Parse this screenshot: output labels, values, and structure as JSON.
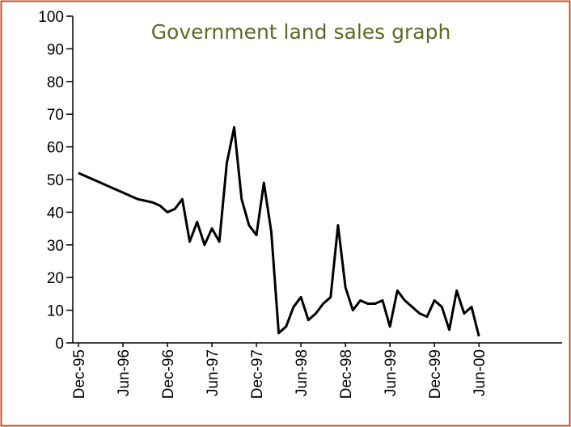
{
  "chart_data": {
    "type": "line",
    "title": "Government land sales graph",
    "categories": [
      "Dec-95",
      null,
      null,
      null,
      null,
      null,
      "Jun-96",
      null,
      null,
      null,
      null,
      null,
      "Dec-96",
      null,
      null,
      null,
      null,
      null,
      "Jun-97",
      null,
      null,
      null,
      null,
      null,
      "Dec-97",
      null,
      null,
      null,
      null,
      null,
      "Jun-98",
      null,
      null,
      null,
      null,
      null,
      "Dec-98",
      null,
      null,
      null,
      null,
      null,
      "Jun-99",
      null,
      null,
      null,
      null,
      null,
      "Dec-99",
      null,
      null,
      null,
      null,
      null,
      "Jun-00",
      null,
      null,
      null,
      null,
      null,
      null,
      null,
      null,
      null,
      null,
      null
    ],
    "values": [
      52,
      51,
      50,
      49,
      48,
      47,
      46,
      45,
      44,
      43.5,
      43,
      42,
      40,
      41,
      44,
      31,
      37,
      30,
      35,
      31,
      55,
      66,
      44,
      36,
      33,
      49,
      34,
      3,
      5,
      11,
      14,
      7,
      9,
      12,
      14,
      36,
      17,
      10,
      13,
      12,
      12,
      13,
      5,
      16,
      13,
      11,
      9,
      8,
      13,
      11,
      4,
      16,
      9,
      11,
      2,
      null,
      null,
      null,
      null,
      null,
      null,
      null,
      null,
      null,
      null,
      null
    ],
    "color": "#000000",
    "ylim": [
      0,
      100
    ],
    "yticks": [
      0,
      10,
      20,
      30,
      40,
      50,
      60,
      70,
      80,
      90,
      100
    ]
  }
}
